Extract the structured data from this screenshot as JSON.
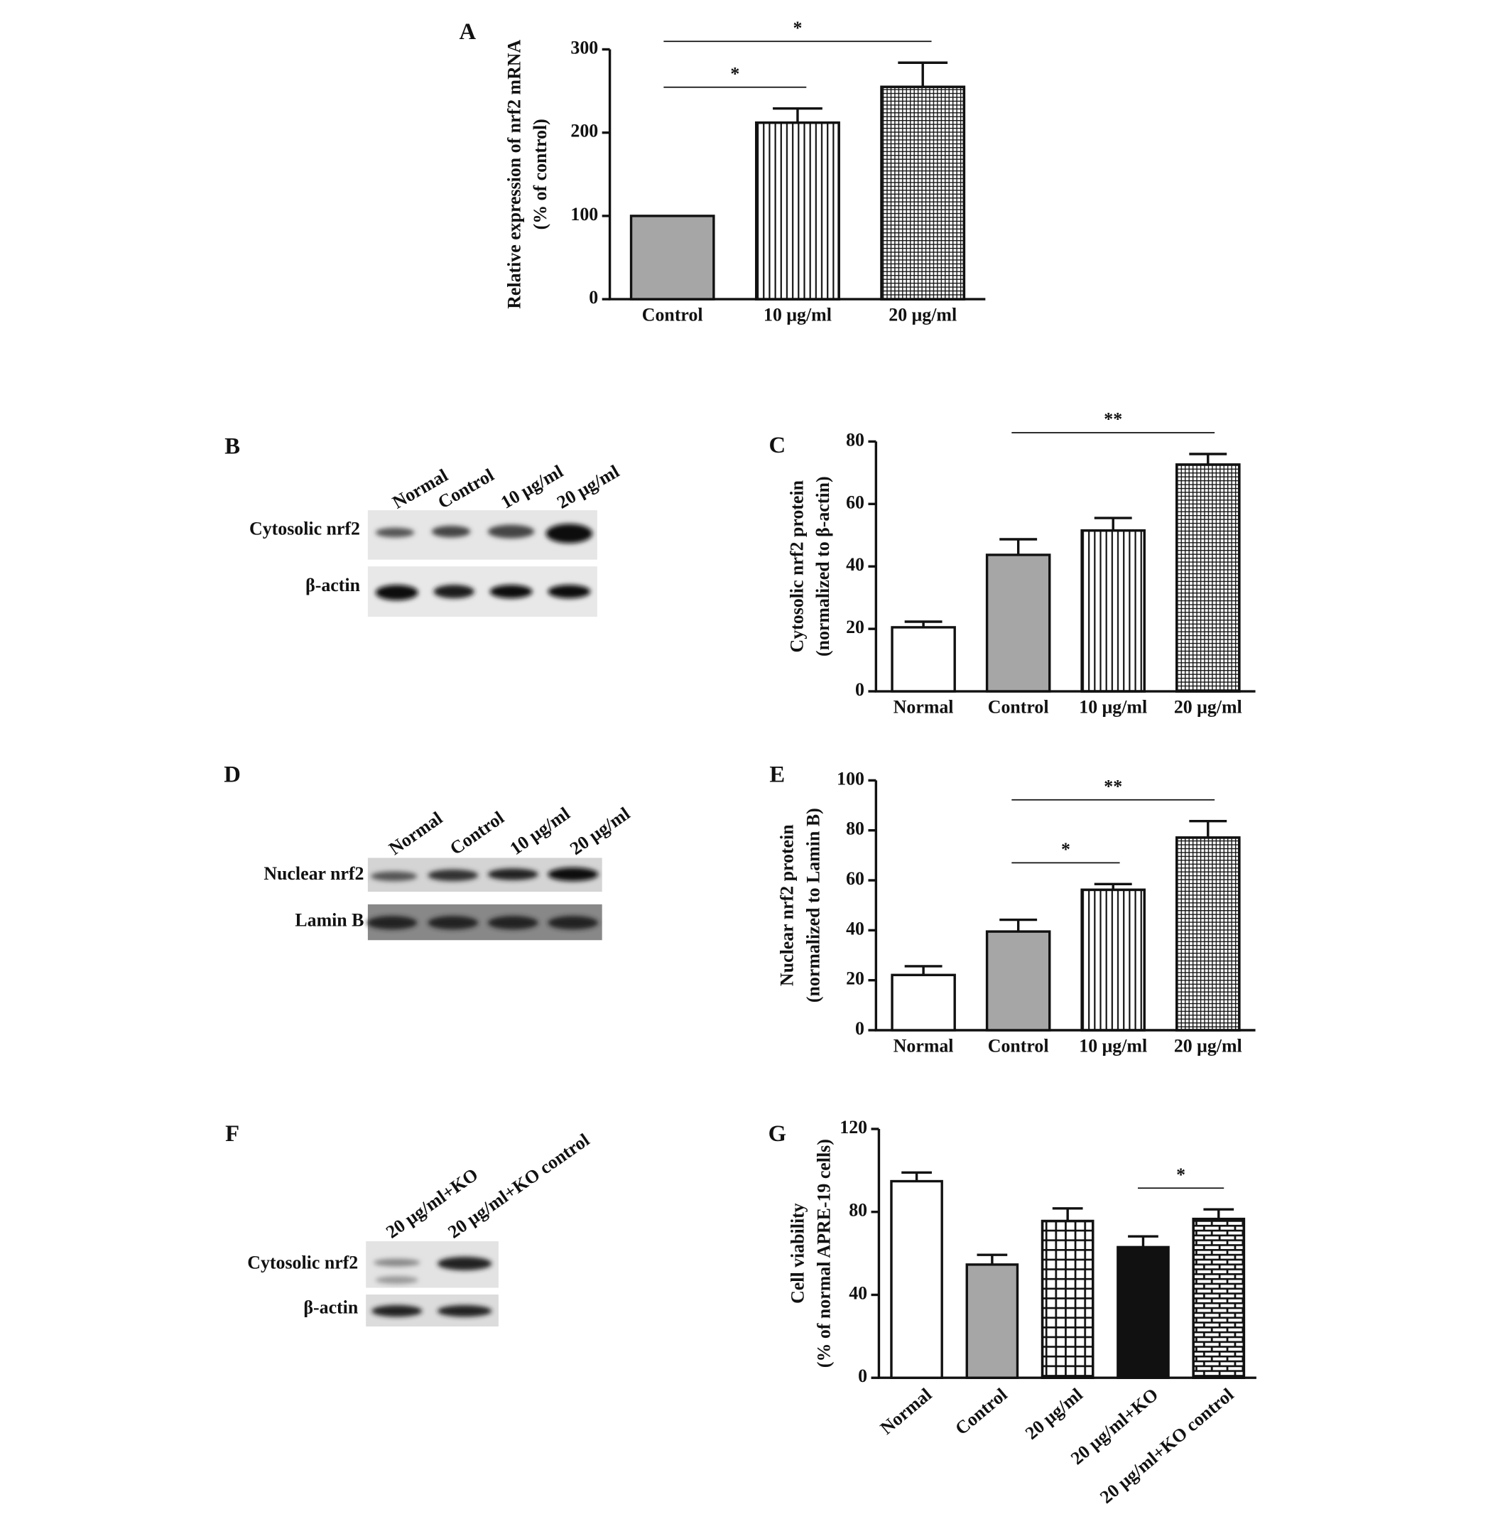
{
  "chart_data": [
    {
      "type": "bar",
      "panel": "A",
      "ylabel": [
        "Relative expression of nrf2 mRNA",
        "(% of control)"
      ],
      "categories": [
        "Control",
        "10 μg/ml",
        "20 μg/ml"
      ],
      "values": [
        100,
        212,
        255
      ],
      "errors": [
        null,
        17,
        29
      ],
      "colors": [
        "#a6a6a6",
        "#ffffff",
        "#ffffff"
      ],
      "patterns": [
        null,
        "vlines",
        "fine-grid"
      ],
      "ylim": [
        0,
        300
      ],
      "yticks": [
        0,
        100,
        200,
        300
      ],
      "significance": [
        {
          "label": "*",
          "span": [
            "Control",
            "20 μg/ml"
          ]
        },
        {
          "label": "*",
          "span": [
            "Control",
            "10 μg/ml"
          ]
        }
      ]
    },
    {
      "type": "bar",
      "panel": "C",
      "ylabel": [
        "Cytosolic nrf2 protein",
        "(normalized to β-actin)"
      ],
      "categories": [
        "Normal",
        "Control",
        "10 μg/ml",
        "20 μg/ml"
      ],
      "values": [
        20.5,
        43.7,
        51.5,
        72.6
      ],
      "errors": [
        1.8,
        5,
        4,
        3.4
      ],
      "colors": [
        "#ffffff",
        "#a6a6a6",
        "#ffffff",
        "#ffffff"
      ],
      "patterns": [
        null,
        null,
        "vlines",
        "fine-grid"
      ],
      "ylim": [
        0,
        80
      ],
      "yticks": [
        0,
        20,
        40,
        60,
        80
      ],
      "significance": [
        {
          "label": "**",
          "span": [
            "Control",
            "20 μg/ml"
          ]
        }
      ]
    },
    {
      "type": "bar",
      "panel": "E",
      "ylabel": [
        "Nuclear nrf2 protein",
        "(normalized to Lamin B)"
      ],
      "categories": [
        "Normal",
        "Control",
        "10 μg/ml",
        "20 μg/ml"
      ],
      "values": [
        22.1,
        39.5,
        56.2,
        77.1
      ],
      "errors": [
        3.5,
        4.7,
        2.3,
        6.6
      ],
      "colors": [
        "#ffffff",
        "#a6a6a6",
        "#ffffff",
        "#ffffff"
      ],
      "patterns": [
        null,
        null,
        "vlines",
        "fine-grid"
      ],
      "ylim": [
        0,
        100
      ],
      "yticks": [
        0,
        20,
        40,
        60,
        80,
        100
      ],
      "significance": [
        {
          "label": "**",
          "span": [
            "Control",
            "20 μg/ml"
          ]
        },
        {
          "label": "*",
          "span": [
            "Control",
            "10 μg/ml"
          ]
        }
      ]
    },
    {
      "type": "bar",
      "panel": "G",
      "ylabel": [
        "Cell viability",
        "(% of normal APRE-19 cells)"
      ],
      "categories": [
        "Normal",
        "Control",
        "20 μg/ml",
        "20 μg/ml+KO",
        "20 μg/ml+KO control"
      ],
      "values": [
        94.8,
        54.6,
        75.6,
        63,
        76.6
      ],
      "errors": [
        4.2,
        4.7,
        6.1,
        5.2,
        4.6
      ],
      "colors": [
        "#ffffff",
        "#a6a6a6",
        "#ffffff",
        "#111111",
        "#ffffff"
      ],
      "patterns": [
        null,
        null,
        "grid",
        null,
        "brick"
      ],
      "ylim": [
        0,
        120
      ],
      "yticks": [
        0,
        40,
        80,
        120
      ],
      "significance": [
        {
          "label": "*",
          "span": [
            "20 μg/ml+KO",
            "20 μg/ml+KO control"
          ]
        }
      ]
    }
  ],
  "blots": [
    {
      "panel": "B",
      "lanes": [
        "Normal",
        "Control",
        "10 μg/ml",
        "20 μg/ml"
      ],
      "rows": [
        "Cytosolic nrf2",
        "β-actin"
      ]
    },
    {
      "panel": "D",
      "lanes": [
        "Normal",
        "Control",
        "10 μg/ml",
        "20 μg/ml"
      ],
      "rows": [
        "Nuclear nrf2",
        "Lamin B"
      ]
    },
    {
      "panel": "F",
      "lanes": [
        "20 μg/ml+KO",
        "20 μg/ml+KO control"
      ],
      "rows": [
        "Cytosolic nrf2",
        "β-actin"
      ]
    }
  ]
}
